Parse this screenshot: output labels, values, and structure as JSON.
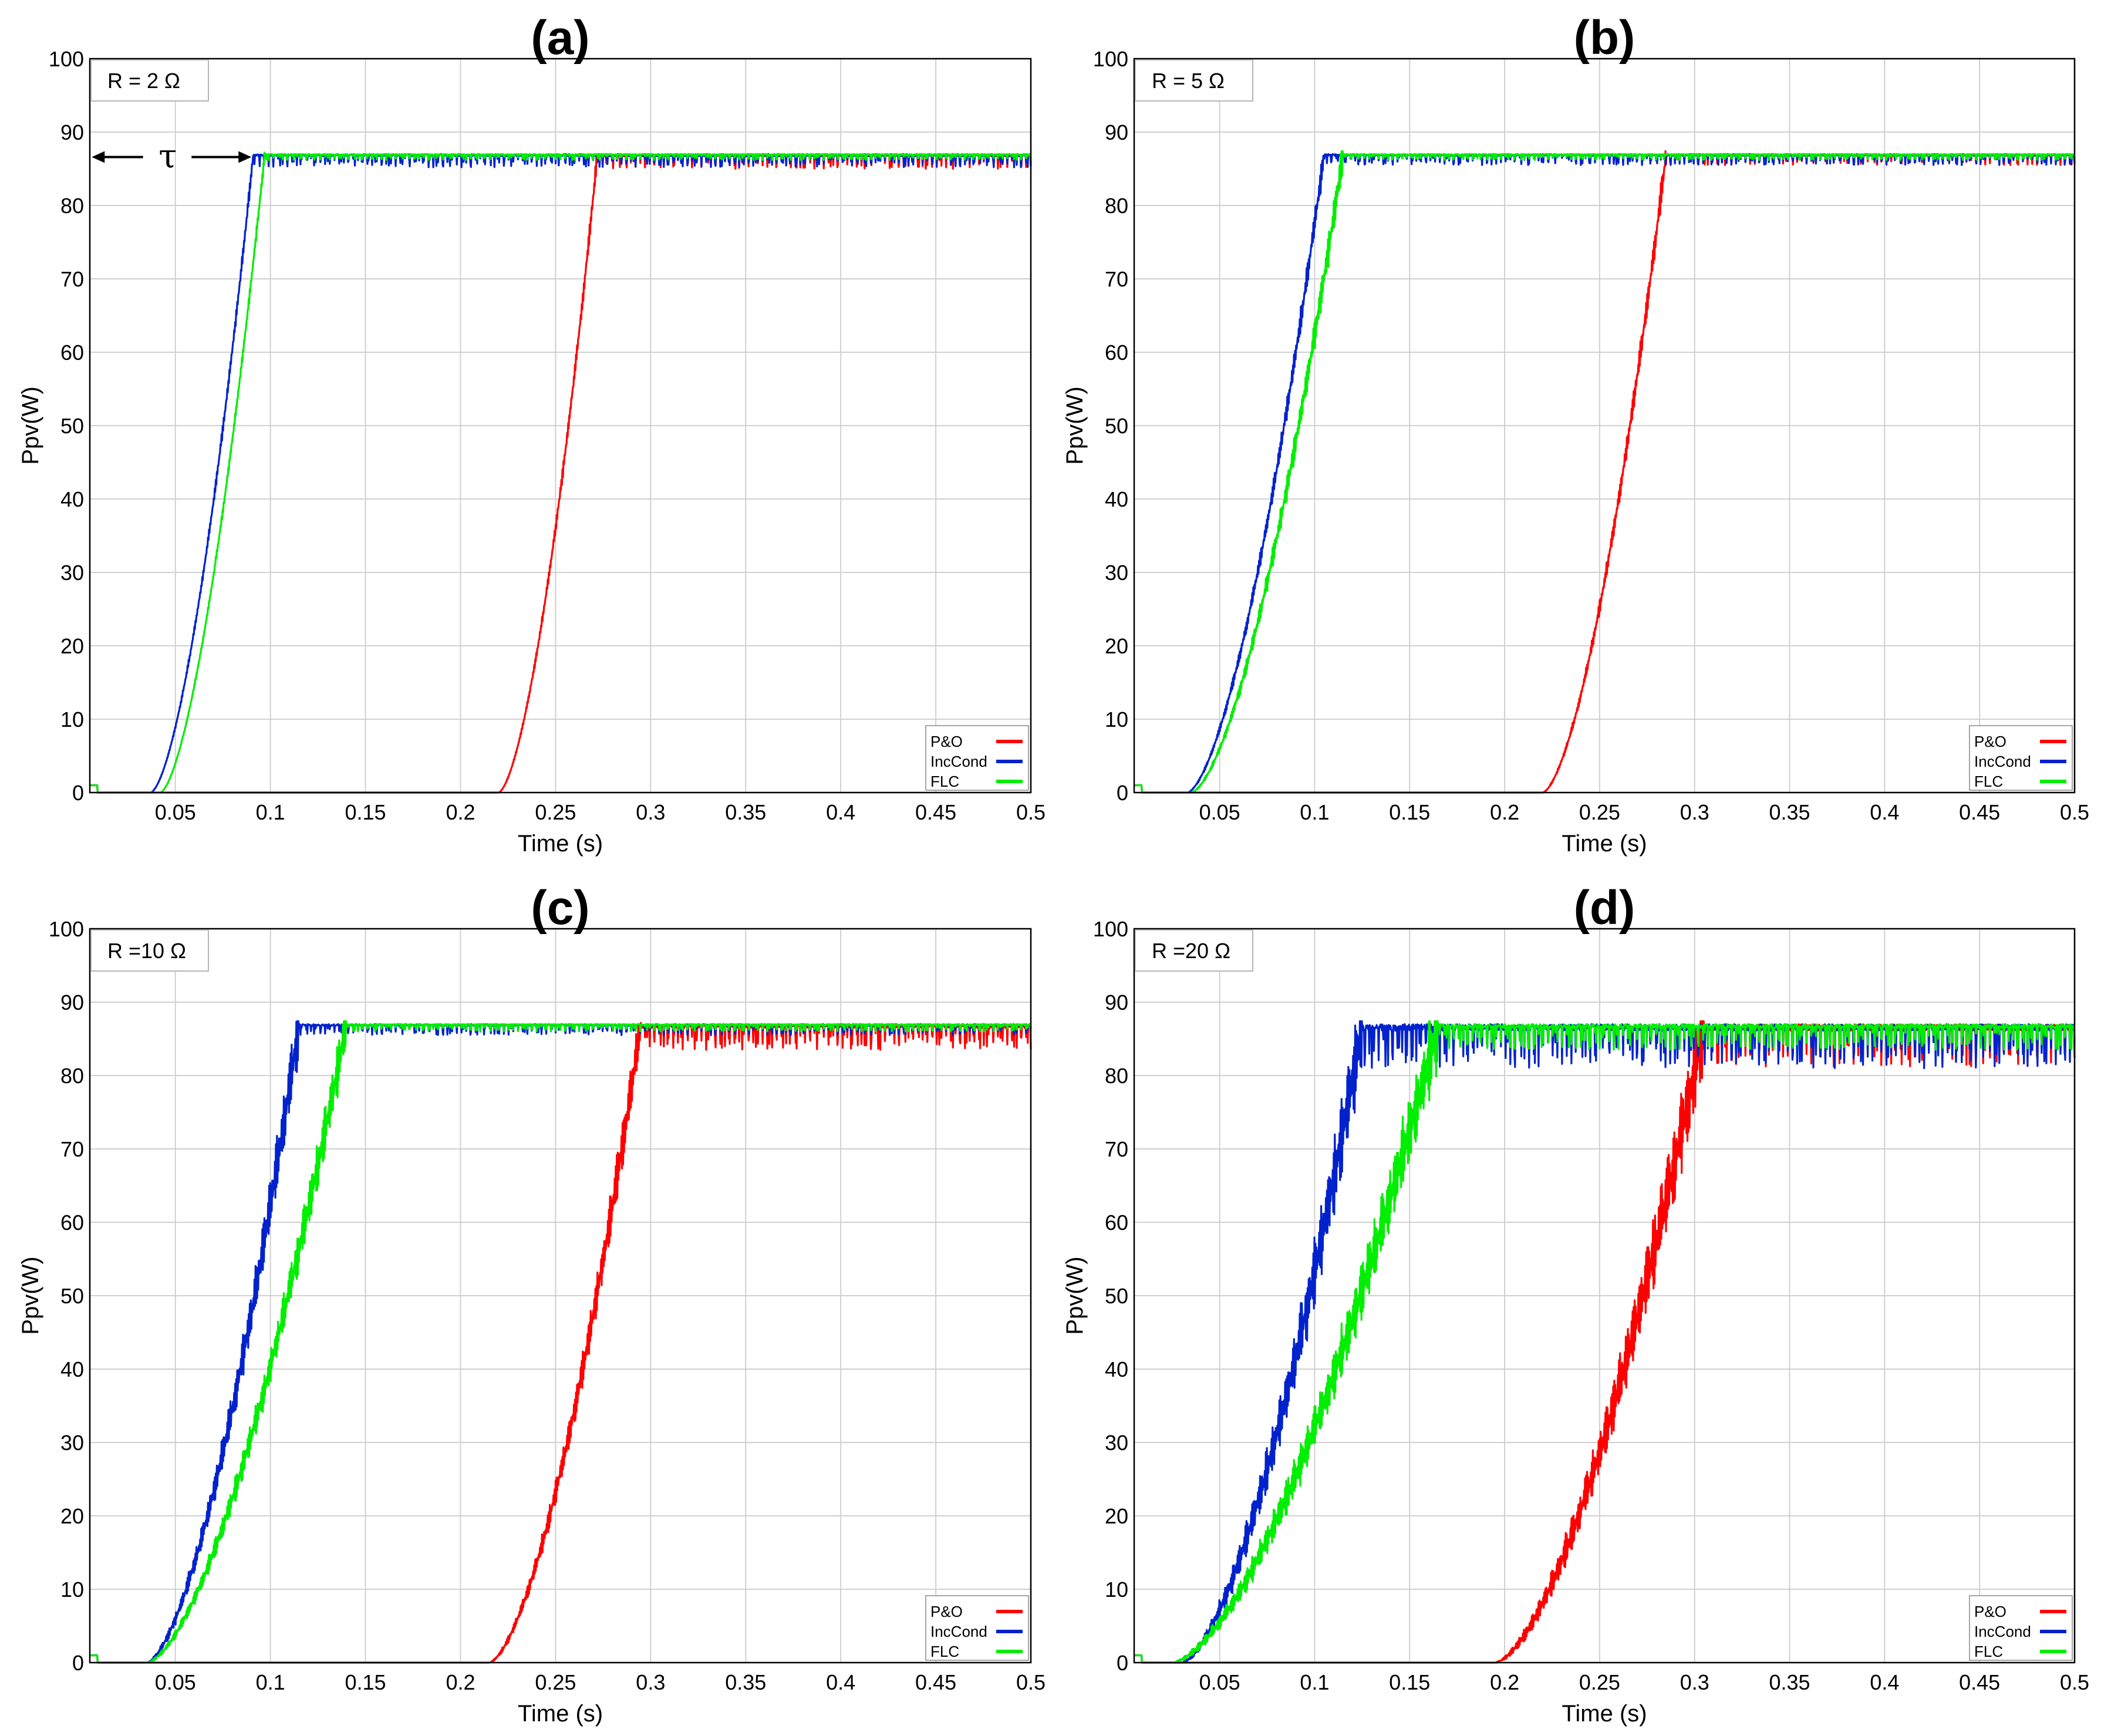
{
  "colors": {
    "po": "#ff0000",
    "inccond": "#0022cc",
    "flc": "#00ee00",
    "grid": "#d0d0d0",
    "axis": "#000000",
    "background": "#ffffff"
  },
  "chart_data": [
    {
      "type": "line",
      "panel_label": "(a)",
      "annotation": "R = 2 Ω",
      "tau_label": "τ",
      "xlabel": "Time (s)",
      "ylabel": "Ppv(W)",
      "xlim": [
        0.005,
        0.5
      ],
      "ylim": [
        0,
        100
      ],
      "x_ticks": [
        0.05,
        0.1,
        0.15,
        0.2,
        0.25,
        0.3,
        0.35,
        0.4,
        0.45,
        0.5
      ],
      "x_tick_labels": [
        "0.05",
        "0.1",
        "0.15",
        "0.2",
        "0.25",
        "0.3",
        "0.35",
        "0.4",
        "0.45",
        "0.5"
      ],
      "y_ticks": [
        0,
        10,
        20,
        30,
        40,
        50,
        60,
        70,
        80,
        90,
        100
      ],
      "y_tick_labels": [
        "0",
        "10",
        "20",
        "30",
        "40",
        "50",
        "60",
        "70",
        "80",
        "90",
        "100"
      ],
      "legend_position": "bottom-right",
      "steady_state": 87,
      "series": [
        {
          "name": "P&O",
          "color": "#ff0000",
          "rise_start": 0.22,
          "rise_end": 0.272,
          "ripple": 2.0,
          "osc": 1.0
        },
        {
          "name": "IncCond",
          "color": "#0022cc",
          "rise_start": 0.037,
          "rise_end": 0.091,
          "ripple": 1.8,
          "osc": 0.8
        },
        {
          "name": "FLC",
          "color": "#00ee00",
          "rise_start": 0.042,
          "rise_end": 0.097,
          "ripple": 0.8,
          "osc": 0.6
        }
      ]
    },
    {
      "type": "line",
      "panel_label": "(b)",
      "annotation": "R = 5 Ω",
      "xlabel": "Time (s)",
      "ylabel": "Ppv(W)",
      "xlim": [
        0.005,
        0.5
      ],
      "ylim": [
        0,
        100
      ],
      "x_ticks": [
        0.05,
        0.1,
        0.15,
        0.2,
        0.25,
        0.3,
        0.35,
        0.4,
        0.45,
        0.5
      ],
      "x_tick_labels": [
        "0.05",
        "0.1",
        "0.15",
        "0.2",
        "0.25",
        "0.3",
        "0.35",
        "0.4",
        "0.45",
        "0.5"
      ],
      "y_ticks": [
        0,
        10,
        20,
        30,
        40,
        50,
        60,
        70,
        80,
        90,
        100
      ],
      "y_tick_labels": [
        "0",
        "10",
        "20",
        "30",
        "40",
        "50",
        "60",
        "70",
        "80",
        "90",
        "100"
      ],
      "legend_position": "bottom-right",
      "steady_state": 87,
      "series": [
        {
          "name": "P&O",
          "color": "#ff0000",
          "rise_start": 0.22,
          "rise_end": 0.285,
          "ripple": 1.5,
          "osc": 1.5
        },
        {
          "name": "IncCond",
          "color": "#0022cc",
          "rise_start": 0.033,
          "rise_end": 0.105,
          "ripple": 1.5,
          "osc": 1.5
        },
        {
          "name": "FLC",
          "color": "#00ee00",
          "rise_start": 0.035,
          "rise_end": 0.115,
          "ripple": 0.8,
          "osc": 2.0
        }
      ]
    },
    {
      "type": "line",
      "panel_label": "(c)",
      "annotation": "R =10 Ω",
      "xlabel": "Time (s)",
      "ylabel": "Ppv(W)",
      "xlim": [
        0.005,
        0.5
      ],
      "ylim": [
        0,
        100
      ],
      "x_ticks": [
        0.05,
        0.1,
        0.15,
        0.2,
        0.25,
        0.3,
        0.35,
        0.4,
        0.45,
        0.5
      ],
      "x_tick_labels": [
        "0.05",
        "0.1",
        "0.15",
        "0.2",
        "0.25",
        "0.3",
        "0.35",
        "0.4",
        "0.45",
        "0.5"
      ],
      "y_ticks": [
        0,
        10,
        20,
        30,
        40,
        50,
        60,
        70,
        80,
        90,
        100
      ],
      "y_tick_labels": [
        "0",
        "10",
        "20",
        "30",
        "40",
        "50",
        "60",
        "70",
        "80",
        "90",
        "100"
      ],
      "legend_position": "bottom-right",
      "steady_state": 87,
      "series": [
        {
          "name": "P&O",
          "color": "#ff0000",
          "rise_start": 0.215,
          "rise_end": 0.295,
          "ripple": 3.5,
          "osc": 3.0
        },
        {
          "name": "IncCond",
          "color": "#0022cc",
          "rise_start": 0.035,
          "rise_end": 0.115,
          "ripple": 1.5,
          "osc": 3.5
        },
        {
          "name": "FLC",
          "color": "#00ee00",
          "rise_start": 0.035,
          "rise_end": 0.14,
          "ripple": 1.0,
          "osc": 3.0
        }
      ]
    },
    {
      "type": "line",
      "panel_label": "(d)",
      "annotation": "R =20 Ω",
      "xlabel": "Time (s)",
      "ylabel": "Ppv(W)",
      "xlim": [
        0.005,
        0.5
      ],
      "ylim": [
        0,
        100
      ],
      "x_ticks": [
        0.05,
        0.1,
        0.15,
        0.2,
        0.25,
        0.3,
        0.35,
        0.4,
        0.45,
        0.5
      ],
      "x_tick_labels": [
        "0.05",
        "0.1",
        "0.15",
        "0.2",
        "0.25",
        "0.3",
        "0.35",
        "0.4",
        "0.45",
        "0.5"
      ],
      "y_ticks": [
        0,
        10,
        20,
        30,
        40,
        50,
        60,
        70,
        80,
        90,
        100
      ],
      "y_tick_labels": [
        "0",
        "10",
        "20",
        "30",
        "40",
        "50",
        "60",
        "70",
        "80",
        "90",
        "100"
      ],
      "legend_position": "bottom-right",
      "steady_state": 87,
      "series": [
        {
          "name": "P&O",
          "color": "#ff0000",
          "rise_start": 0.195,
          "rise_end": 0.305,
          "ripple": 6.0,
          "osc": 5.0
        },
        {
          "name": "IncCond",
          "color": "#0022cc",
          "rise_start": 0.03,
          "rise_end": 0.125,
          "ripple": 6.0,
          "osc": 5.0
        },
        {
          "name": "FLC",
          "color": "#00ee00",
          "rise_start": 0.025,
          "rise_end": 0.165,
          "ripple": 3.5,
          "osc": 4.5
        }
      ]
    }
  ]
}
